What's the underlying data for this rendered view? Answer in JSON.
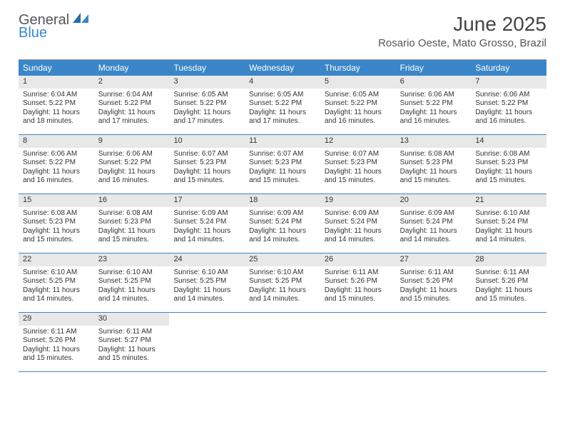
{
  "logo": {
    "general": "General",
    "blue": "Blue"
  },
  "title": "June 2025",
  "location": "Rosario Oeste, Mato Grosso, Brazil",
  "colors": {
    "header_bg": "#3a86c8",
    "header_text": "#ffffff",
    "daynum_bg": "#e8e8e8",
    "row_divider": "#3a86c8",
    "body_text": "#333333",
    "logo_blue": "#3a86c8"
  },
  "weekdays": [
    "Sunday",
    "Monday",
    "Tuesday",
    "Wednesday",
    "Thursday",
    "Friday",
    "Saturday"
  ],
  "weeks": [
    [
      {
        "n": "1",
        "sr": "6:04 AM",
        "ss": "5:22 PM",
        "dl": "11 hours and 18 minutes."
      },
      {
        "n": "2",
        "sr": "6:04 AM",
        "ss": "5:22 PM",
        "dl": "11 hours and 17 minutes."
      },
      {
        "n": "3",
        "sr": "6:05 AM",
        "ss": "5:22 PM",
        "dl": "11 hours and 17 minutes."
      },
      {
        "n": "4",
        "sr": "6:05 AM",
        "ss": "5:22 PM",
        "dl": "11 hours and 17 minutes."
      },
      {
        "n": "5",
        "sr": "6:05 AM",
        "ss": "5:22 PM",
        "dl": "11 hours and 16 minutes."
      },
      {
        "n": "6",
        "sr": "6:06 AM",
        "ss": "5:22 PM",
        "dl": "11 hours and 16 minutes."
      },
      {
        "n": "7",
        "sr": "6:06 AM",
        "ss": "5:22 PM",
        "dl": "11 hours and 16 minutes."
      }
    ],
    [
      {
        "n": "8",
        "sr": "6:06 AM",
        "ss": "5:22 PM",
        "dl": "11 hours and 16 minutes."
      },
      {
        "n": "9",
        "sr": "6:06 AM",
        "ss": "5:22 PM",
        "dl": "11 hours and 16 minutes."
      },
      {
        "n": "10",
        "sr": "6:07 AM",
        "ss": "5:23 PM",
        "dl": "11 hours and 15 minutes."
      },
      {
        "n": "11",
        "sr": "6:07 AM",
        "ss": "5:23 PM",
        "dl": "11 hours and 15 minutes."
      },
      {
        "n": "12",
        "sr": "6:07 AM",
        "ss": "5:23 PM",
        "dl": "11 hours and 15 minutes."
      },
      {
        "n": "13",
        "sr": "6:08 AM",
        "ss": "5:23 PM",
        "dl": "11 hours and 15 minutes."
      },
      {
        "n": "14",
        "sr": "6:08 AM",
        "ss": "5:23 PM",
        "dl": "11 hours and 15 minutes."
      }
    ],
    [
      {
        "n": "15",
        "sr": "6:08 AM",
        "ss": "5:23 PM",
        "dl": "11 hours and 15 minutes."
      },
      {
        "n": "16",
        "sr": "6:08 AM",
        "ss": "5:23 PM",
        "dl": "11 hours and 15 minutes."
      },
      {
        "n": "17",
        "sr": "6:09 AM",
        "ss": "5:24 PM",
        "dl": "11 hours and 14 minutes."
      },
      {
        "n": "18",
        "sr": "6:09 AM",
        "ss": "5:24 PM",
        "dl": "11 hours and 14 minutes."
      },
      {
        "n": "19",
        "sr": "6:09 AM",
        "ss": "5:24 PM",
        "dl": "11 hours and 14 minutes."
      },
      {
        "n": "20",
        "sr": "6:09 AM",
        "ss": "5:24 PM",
        "dl": "11 hours and 14 minutes."
      },
      {
        "n": "21",
        "sr": "6:10 AM",
        "ss": "5:24 PM",
        "dl": "11 hours and 14 minutes."
      }
    ],
    [
      {
        "n": "22",
        "sr": "6:10 AM",
        "ss": "5:25 PM",
        "dl": "11 hours and 14 minutes."
      },
      {
        "n": "23",
        "sr": "6:10 AM",
        "ss": "5:25 PM",
        "dl": "11 hours and 14 minutes."
      },
      {
        "n": "24",
        "sr": "6:10 AM",
        "ss": "5:25 PM",
        "dl": "11 hours and 14 minutes."
      },
      {
        "n": "25",
        "sr": "6:10 AM",
        "ss": "5:25 PM",
        "dl": "11 hours and 14 minutes."
      },
      {
        "n": "26",
        "sr": "6:11 AM",
        "ss": "5:26 PM",
        "dl": "11 hours and 15 minutes."
      },
      {
        "n": "27",
        "sr": "6:11 AM",
        "ss": "5:26 PM",
        "dl": "11 hours and 15 minutes."
      },
      {
        "n": "28",
        "sr": "6:11 AM",
        "ss": "5:26 PM",
        "dl": "11 hours and 15 minutes."
      }
    ],
    [
      {
        "n": "29",
        "sr": "6:11 AM",
        "ss": "5:26 PM",
        "dl": "11 hours and 15 minutes."
      },
      {
        "n": "30",
        "sr": "6:11 AM",
        "ss": "5:27 PM",
        "dl": "11 hours and 15 minutes."
      },
      null,
      null,
      null,
      null,
      null
    ]
  ],
  "labels": {
    "sunrise": "Sunrise:",
    "sunset": "Sunset:",
    "daylight": "Daylight:"
  }
}
